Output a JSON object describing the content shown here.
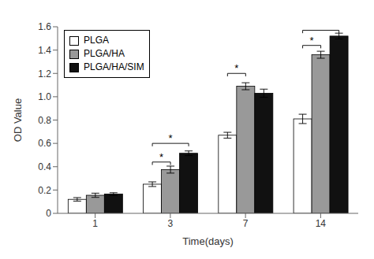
{
  "chart_data": {
    "type": "bar",
    "x_label": "Time(days)",
    "y_label": "OD Value",
    "categories": [
      "1",
      "3",
      "7",
      "14"
    ],
    "series": [
      {
        "name": "PLGA",
        "color": "white",
        "values": [
          0.12,
          0.25,
          0.67,
          0.81
        ],
        "errors": [
          0.015,
          0.02,
          0.025,
          0.04
        ]
      },
      {
        "name": "PLGA/HA",
        "color": "#999999",
        "values": [
          0.155,
          0.375,
          1.09,
          1.36
        ],
        "errors": [
          0.018,
          0.03,
          0.03,
          0.03
        ]
      },
      {
        "name": "PLGA/HA/SIM",
        "color": "#111111",
        "values": [
          0.165,
          0.515,
          1.03,
          1.52
        ],
        "errors": [
          0.012,
          0.02,
          0.035,
          0.025
        ]
      }
    ],
    "ylim": [
      0,
      1.6
    ],
    "yticks": [
      0,
      0.2,
      0.4,
      0.6,
      0.8,
      {
        "value": 1,
        "label": "1.0"
      },
      1.2,
      1.4,
      1.6
    ],
    "legend": "upper left",
    "annotations": [
      {
        "category": "3",
        "from": "PLGA",
        "to": "PLGA/HA",
        "y": 0.44,
        "text": "*"
      },
      {
        "category": "3",
        "from": "PLGA",
        "to": "PLGA/HA/SIM",
        "y": 0.6,
        "text": "*"
      },
      {
        "category": "7",
        "from": "PLGA",
        "to": "PLGA/HA",
        "y": 1.2,
        "text": "*"
      },
      {
        "category": "14",
        "from": "PLGA",
        "to": "PLGA/HA",
        "y": 1.44,
        "text": "*"
      },
      {
        "category": "14",
        "from": "PLGA",
        "to": "PLGA/HA/SIM",
        "y": 1.57,
        "text": "*"
      }
    ]
  }
}
